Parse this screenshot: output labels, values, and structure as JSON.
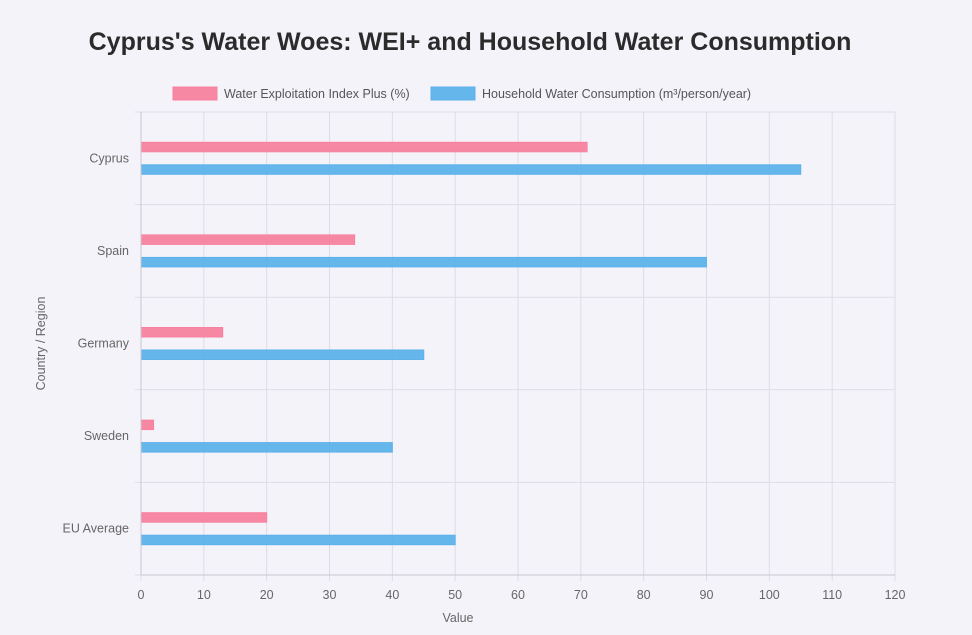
{
  "chart_data": {
    "type": "bar",
    "orientation": "horizontal",
    "title": "Cyprus's Water Woes: WEI+ and Household Water Consumption",
    "xlabel": "Value",
    "ylabel": "Country / Region",
    "categories": [
      "Cyprus",
      "Spain",
      "Germany",
      "Sweden",
      "EU Average"
    ],
    "series": [
      {
        "name": "Water Exploitation Index Plus (%)",
        "values": [
          71,
          34,
          13,
          2,
          20
        ],
        "color": "#f7829f"
      },
      {
        "name": "Household Water Consumption (m³/person/year)",
        "values": [
          105,
          90,
          45,
          40,
          50
        ],
        "color": "#5db2ea"
      }
    ],
    "xlim": [
      0,
      120
    ],
    "xticks": [
      0,
      10,
      20,
      30,
      40,
      50,
      60,
      70,
      80,
      90,
      100,
      110,
      120
    ],
    "grid": true,
    "legend_position": "top"
  }
}
